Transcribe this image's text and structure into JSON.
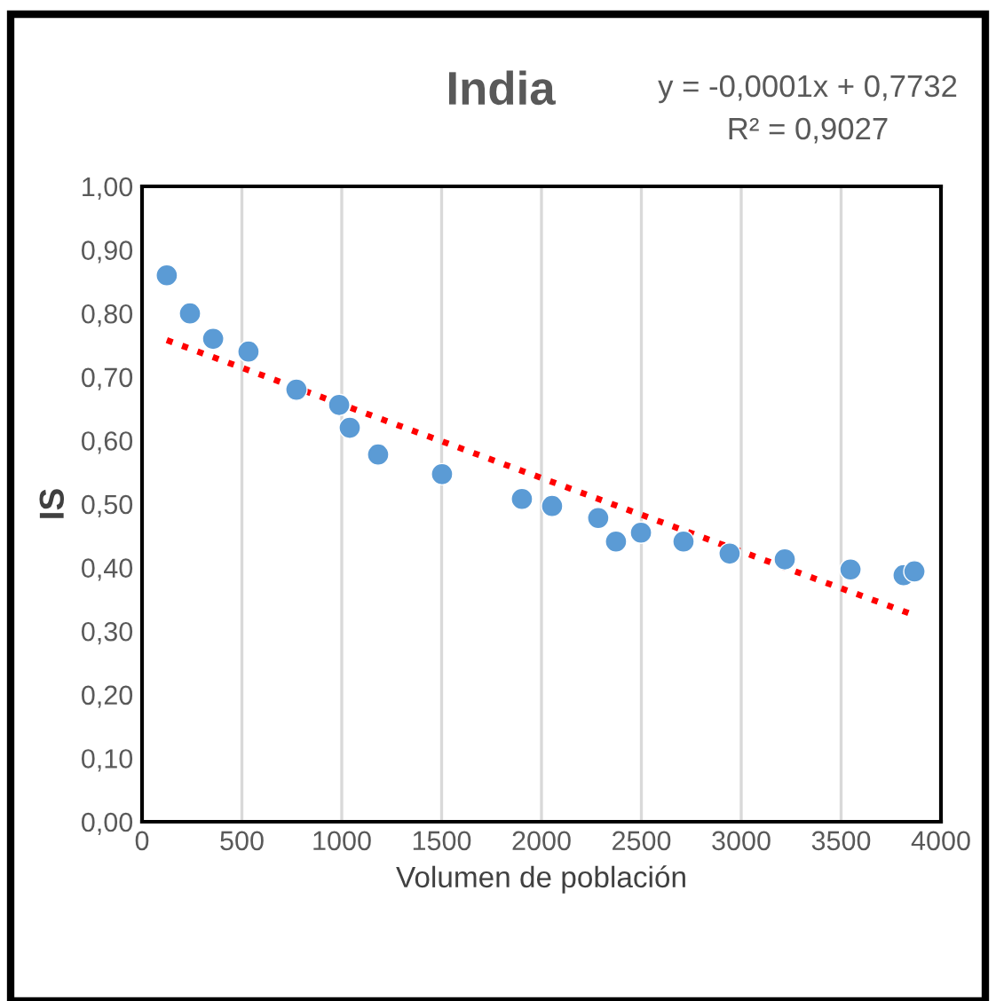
{
  "chart_data": {
    "type": "scatter",
    "title": "India",
    "xlabel": "Volumen de población",
    "ylabel": "IS",
    "annotations": [
      "y = -0,0001x + 0,7732",
      "R² = 0,9027"
    ],
    "series": [
      {
        "color": "#5b9bd5",
        "marker": "circle",
        "x": [
          124,
          240,
          356,
          533,
          773,
          987,
          1040,
          1182,
          1502,
          1902,
          2053,
          2284,
          2373,
          2498,
          2711,
          2942,
          3218,
          3547,
          3813,
          3867
        ],
        "values": [
          0.86,
          0.8,
          0.76,
          0.74,
          0.68,
          0.656,
          0.62,
          0.578,
          0.547,
          0.508,
          0.497,
          0.478,
          0.441,
          0.455,
          0.441,
          0.422,
          0.413,
          0.397,
          0.388,
          0.394
        ]
      },
      {
        "type": "line",
        "color": "#ff0000",
        "line_style": "dotted",
        "x": [
          124,
          3867
        ],
        "values": [
          0.758,
          0.325
        ]
      }
    ],
    "xlim": [
      0,
      4000
    ],
    "xticks": [
      0,
      500,
      1000,
      1500,
      2000,
      2500,
      3000,
      3500,
      4000
    ],
    "ylim": [
      0,
      1
    ],
    "yticks": [
      {
        "value": 0,
        "label": "0,00"
      },
      {
        "value": 0.1,
        "label": "0,10"
      },
      {
        "value": 0.2,
        "label": "0,20"
      },
      {
        "value": 0.3,
        "label": "0,30"
      },
      {
        "value": 0.4,
        "label": "0,40"
      },
      {
        "value": 0.5,
        "label": "0,50"
      },
      {
        "value": 0.6,
        "label": "0,60"
      },
      {
        "value": 0.7,
        "label": "0,70"
      },
      {
        "value": 0.8,
        "label": "0,80"
      },
      {
        "value": 0.9,
        "label": "0,90"
      },
      {
        "value": 1.0,
        "label": "1,00"
      }
    ],
    "grid": "x",
    "legend": false
  }
}
